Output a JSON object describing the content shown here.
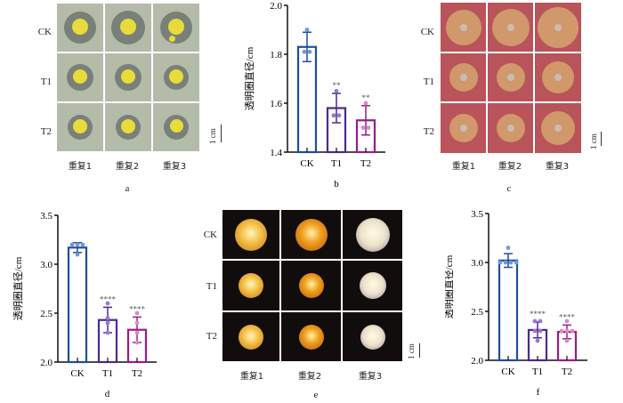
{
  "panels": {
    "a": {
      "label": "a",
      "rows": [
        "CK",
        "T1",
        "T2"
      ],
      "cols": [
        "重复1",
        "重复2",
        "重复3"
      ],
      "scale": "1 cm",
      "colors": {
        "bg": "#b4bba9",
        "halo": "#6f7571",
        "disk": "#e8dc3b"
      }
    },
    "c": {
      "label": "c",
      "rows": [
        "CK",
        "T1",
        "T2"
      ],
      "cols": [
        "重复1",
        "重复2",
        "重复3"
      ],
      "scale": "1 cm",
      "colors": {
        "bg": "#b9545a",
        "halo": "#d4a06e",
        "center": "#c7bdb4"
      }
    },
    "e": {
      "label": "e",
      "rows": [
        "CK",
        "T1",
        "T2"
      ],
      "cols": [
        "重复1",
        "重复2",
        "重复3"
      ],
      "scale": "1 cm",
      "colors": {
        "bg": "#120d0d"
      }
    },
    "b": {
      "label": "b"
    },
    "d": {
      "label": "d"
    },
    "f": {
      "label": "f"
    }
  },
  "chart_data": [
    {
      "id": "b",
      "type": "bar",
      "ylabel": "透明圈直径/cm",
      "xlabel": "",
      "categories": [
        "CK",
        "T1",
        "T2"
      ],
      "ylim": [
        1.4,
        2.0
      ],
      "yticks": [
        1.4,
        1.6,
        1.8,
        2.0
      ],
      "tick_decimals": 1,
      "values": [
        1.83,
        1.58,
        1.53
      ],
      "errors": [
        0.06,
        0.06,
        0.06
      ],
      "points": [
        [
          1.81,
          1.81,
          1.9
        ],
        [
          1.55,
          1.55,
          1.65
        ],
        [
          1.5,
          1.5,
          1.6
        ]
      ],
      "significance": [
        "",
        "**",
        "**"
      ],
      "colors": [
        "#1f4e9c",
        "#4b2a8f",
        "#9a1c8a"
      ],
      "point_colors": [
        "#6f9ad8",
        "#9a7ac8",
        "#d98bc9"
      ]
    },
    {
      "id": "d",
      "type": "bar",
      "ylabel": "透明圈直径/cm",
      "xlabel": "",
      "categories": [
        "CK",
        "T1",
        "T2"
      ],
      "ylim": [
        2.0,
        3.5
      ],
      "yticks": [
        2.0,
        2.5,
        3.0,
        3.5
      ],
      "tick_decimals": 1,
      "values": [
        3.17,
        2.43,
        2.33
      ],
      "errors": [
        0.05,
        0.13,
        0.13
      ],
      "points": [
        [
          3.2,
          3.2,
          3.2,
          3.1
        ],
        [
          2.6,
          2.45,
          2.4,
          2.3
        ],
        [
          2.5,
          2.4,
          2.3,
          2.2
        ]
      ],
      "significance": [
        "",
        "****",
        "****"
      ],
      "colors": [
        "#1f4e9c",
        "#4b2a8f",
        "#9a1c8a"
      ],
      "point_colors": [
        "#6f9ad8",
        "#9a7ac8",
        "#d98bc9"
      ]
    },
    {
      "id": "f",
      "type": "bar",
      "ylabel": "透明圈直径/cm",
      "xlabel": "",
      "categories": [
        "CK",
        "T1",
        "T2"
      ],
      "ylim": [
        2.0,
        3.5
      ],
      "yticks": [
        2.0,
        2.5,
        3.0,
        3.5
      ],
      "tick_decimals": 1,
      "values": [
        3.02,
        2.31,
        2.29
      ],
      "errors": [
        0.07,
        0.08,
        0.07
      ],
      "points": [
        [
          3.15,
          3.0,
          3.0,
          3.0,
          3.0
        ],
        [
          2.4,
          2.4,
          2.3,
          2.3,
          2.2
        ],
        [
          2.4,
          2.3,
          2.3,
          2.3,
          2.2
        ]
      ],
      "significance": [
        "",
        "****",
        "****"
      ],
      "colors": [
        "#1f4e9c",
        "#4b2a8f",
        "#9a1c8a"
      ],
      "point_colors": [
        "#6f9ad8",
        "#9a7ac8",
        "#d98bc9"
      ]
    }
  ]
}
